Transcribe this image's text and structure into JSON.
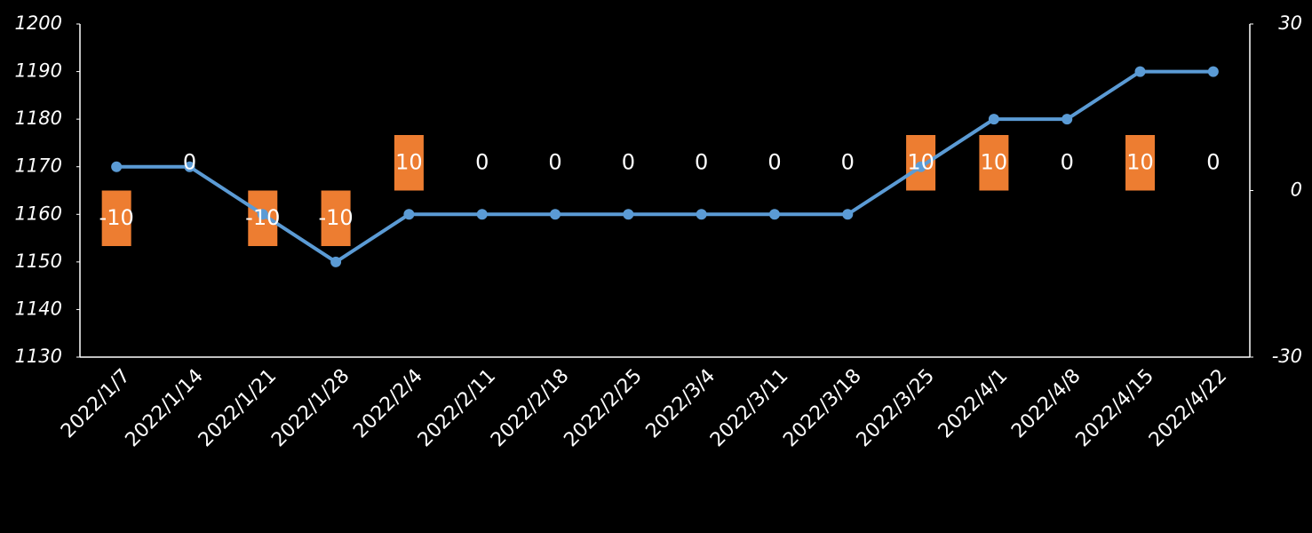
{
  "chart_data": {
    "type": "combo",
    "categories": [
      "2022/1/7",
      "2022/1/14",
      "2022/1/21",
      "2022/1/28",
      "2022/2/4",
      "2022/2/11",
      "2022/2/18",
      "2022/2/25",
      "2022/3/4",
      "2022/3/11",
      "2022/3/18",
      "2022/3/25",
      "2022/4/1",
      "2022/4/8",
      "2022/4/15",
      "2022/4/22"
    ],
    "series": [
      {
        "type": "bar",
        "axis": "y2",
        "color": "#ed7d31",
        "values": [
          -10,
          0,
          -10,
          -10,
          10,
          0,
          0,
          0,
          0,
          0,
          0,
          10,
          10,
          0,
          10,
          0
        ]
      },
      {
        "type": "line",
        "color": "#5b9bd5",
        "values": [
          1170,
          1170,
          1160,
          1150,
          1160,
          1160,
          1160,
          1160,
          1160,
          1160,
          1160,
          1170,
          1180,
          1180,
          1190,
          1190
        ]
      }
    ],
    "ylim": [
      1130,
      1200
    ],
    "yticks": [
      1130,
      1140,
      1150,
      1160,
      1170,
      1180,
      1190,
      1200
    ],
    "y2lim": [
      -30,
      30
    ],
    "y2ticks": [
      -30,
      0,
      30
    ],
    "grid": false
  }
}
